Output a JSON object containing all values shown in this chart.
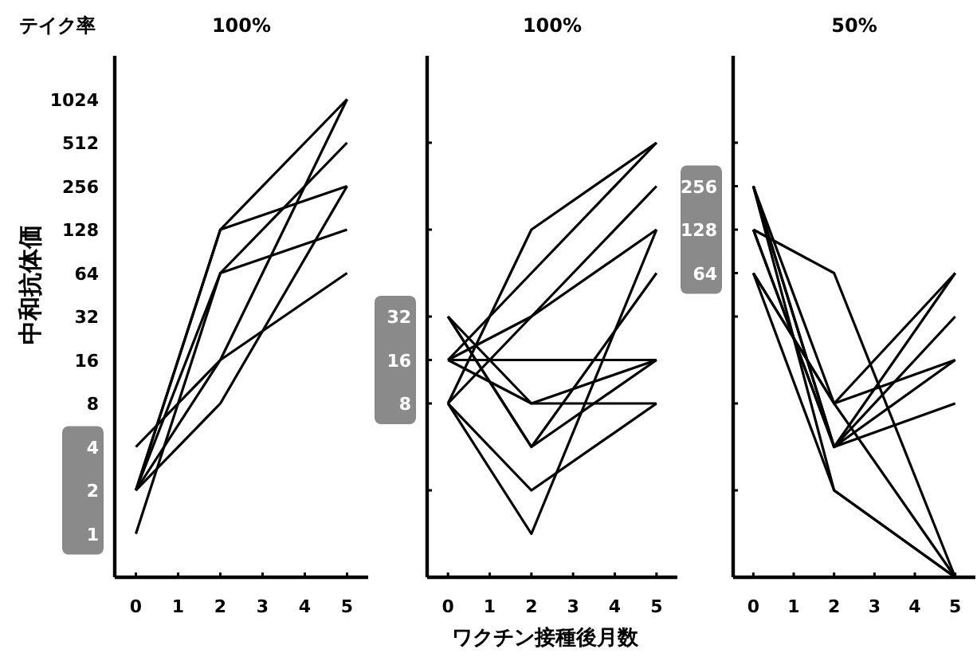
{
  "chart_data": [
    {
      "type": "line",
      "title": "100%",
      "ylabel": "中和抗体価",
      "annotations": [
        "テイク率"
      ],
      "log": "y",
      "x": [
        0,
        2,
        5
      ],
      "xlim": [
        -0.5,
        5.5
      ],
      "xticks": [
        0,
        1,
        2,
        3,
        4,
        5
      ],
      "ylim": [
        0.5,
        2048
      ],
      "yticks": [
        1,
        2,
        4,
        8,
        16,
        32,
        64,
        128,
        256,
        512,
        1024
      ],
      "series": [
        {
          "color": "#000000",
          "values": [
            2,
            128,
            1024
          ]
        },
        {
          "color": "#000000",
          "values": [
            2,
            128,
            256
          ]
        },
        {
          "color": "#000000",
          "values": [
            2,
            64,
            128
          ]
        },
        {
          "color": "#000000",
          "values": [
            1,
            64,
            512
          ]
        },
        {
          "color": "#000000",
          "values": [
            2,
            8,
            256
          ]
        },
        {
          "color": "#000000",
          "values": [
            2,
            16,
            1024
          ]
        },
        {
          "color": "#000000",
          "values": [
            4,
            16,
            64
          ]
        }
      ]
    },
    {
      "type": "line",
      "title": "100%",
      "xlabel": "ワクチン接種後月数",
      "log": "y",
      "x": [
        0,
        2,
        5
      ],
      "xlim": [
        -0.5,
        5.5
      ],
      "xticks": [
        0,
        1,
        2,
        3,
        4,
        5
      ],
      "ylim": [
        0.5,
        2048
      ],
      "yticks": [
        {
          "value": 2,
          "label": null
        },
        {
          "value": 8,
          "label": "8"
        },
        {
          "value": 16,
          "label": "16"
        },
        {
          "value": 32,
          "label": "32"
        },
        {
          "value": 128,
          "label": null
        },
        {
          "value": 512,
          "label": null
        }
      ],
      "series": [
        {
          "color": "#000000",
          "values": [
            8,
            128,
            512
          ]
        },
        {
          "color": "#000000",
          "values": [
            16,
            64,
            512
          ]
        },
        {
          "color": "#000000",
          "values": [
            8,
            32,
            256
          ]
        },
        {
          "color": "#000000",
          "values": [
            16,
            32,
            128
          ]
        },
        {
          "color": "#000000",
          "values": [
            8,
            1,
            128
          ]
        },
        {
          "color": "#000000",
          "values": [
            32,
            4,
            64
          ]
        },
        {
          "color": "#000000",
          "values": [
            16,
            16,
            16
          ]
        },
        {
          "color": "#000000",
          "values": [
            32,
            8,
            16
          ]
        },
        {
          "color": "#000000",
          "values": [
            16,
            8,
            8
          ]
        },
        {
          "color": "#000000",
          "values": [
            8,
            2,
            8
          ]
        },
        {
          "color": "#000000",
          "values": [
            32,
            4,
            16
          ]
        }
      ]
    },
    {
      "type": "line",
      "title": "50%",
      "log": "y",
      "x": [
        0,
        2,
        5
      ],
      "xlim": [
        -0.5,
        5.5
      ],
      "xticks": [
        0,
        1,
        2,
        3,
        4,
        5
      ],
      "ylim": [
        0.5,
        2048
      ],
      "yticks": [
        {
          "value": 2,
          "label": null
        },
        {
          "value": 8,
          "label": null
        },
        {
          "value": 32,
          "label": null
        },
        {
          "value": 64,
          "label": "64"
        },
        {
          "value": 128,
          "label": "128"
        },
        {
          "value": 256,
          "label": "256"
        },
        {
          "value": 512,
          "label": null
        }
      ],
      "series": [
        {
          "color": "#000000",
          "values": [
            128,
            64,
            0.5
          ]
        },
        {
          "color": "#000000",
          "values": [
            256,
            2,
            0.5
          ]
        },
        {
          "color": "#000000",
          "values": [
            64,
            2,
            0.5
          ]
        },
        {
          "color": "#000000",
          "values": [
            256,
            8,
            64
          ]
        },
        {
          "color": "#000000",
          "values": [
            256,
            4,
            64
          ]
        },
        {
          "color": "#000000",
          "values": [
            128,
            4,
            32
          ]
        },
        {
          "color": "#000000",
          "values": [
            256,
            4,
            16
          ]
        },
        {
          "color": "#000000",
          "values": [
            64,
            8,
            16
          ]
        },
        {
          "color": "#000000",
          "values": [
            128,
            4,
            8
          ]
        },
        {
          "color": "#000000",
          "values": [
            64,
            8,
            0.5
          ]
        }
      ]
    }
  ]
}
